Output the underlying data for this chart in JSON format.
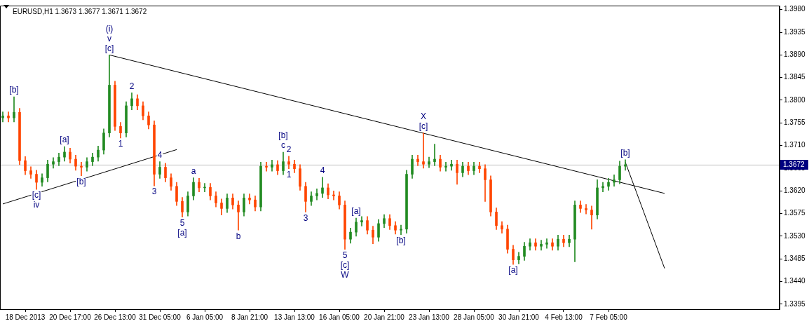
{
  "chart_data": {
    "type": "candlestick",
    "title": "EURUSD,H1 1.3673 1.3677 1.3671 1.3672",
    "categories": [
      null,
      null,
      null,
      null,
      "18 Dec 2013",
      null,
      null,
      null,
      null,
      null,
      null,
      null,
      "20 Dec 17:00",
      null,
      null,
      null,
      null,
      null,
      null,
      null,
      "26 Dec 13:00",
      null,
      null,
      null,
      null,
      null,
      null,
      null,
      "31 Dec 05:00",
      null,
      null,
      null,
      null,
      null,
      null,
      null,
      "6 Jan 05:00",
      null,
      null,
      null,
      null,
      null,
      null,
      null,
      "8 Jan 21:00",
      null,
      null,
      null,
      null,
      null,
      null,
      null,
      "13 Jan 13:00",
      null,
      null,
      null,
      null,
      null,
      null,
      null,
      "16 Jan 05:00",
      null,
      null,
      null,
      null,
      null,
      null,
      null,
      "20 Jan 21:00",
      null,
      null,
      null,
      null,
      null,
      null,
      null,
      "23 Jan 13:00",
      null,
      null,
      null,
      null,
      null,
      null,
      null,
      "28 Jan 05:00",
      null,
      null,
      null,
      null,
      null,
      null,
      null,
      "30 Jan 21:00",
      null,
      null,
      null,
      null,
      null,
      null,
      null,
      "4 Feb 13:00",
      null,
      null,
      null,
      null,
      null,
      null,
      null,
      "7 Feb 05:00",
      null,
      null,
      null,
      null,
      null,
      null,
      null,
      null,
      null,
      null,
      null,
      null,
      null,
      null,
      null,
      null,
      null,
      null,
      null,
      null,
      null,
      null,
      null,
      null,
      null,
      null,
      null,
      null,
      null,
      null
    ],
    "ohlc": [
      [
        1.3765,
        1.3777,
        1.3757,
        1.3769
      ],
      [
        1.3769,
        1.3777,
        1.3757,
        1.3765
      ],
      [
        1.3765,
        1.3807,
        1.3757,
        1.3776
      ],
      [
        1.3776,
        1.3784,
        1.3672,
        1.368
      ],
      [
        1.368,
        1.3688,
        1.3652,
        1.366
      ],
      [
        1.366,
        1.3668,
        1.3645,
        1.3653
      ],
      [
        1.3653,
        1.3661,
        1.3623,
        1.3637
      ],
      [
        1.3637,
        1.3654,
        1.3629,
        1.3646
      ],
      [
        1.3646,
        1.3681,
        1.3638,
        1.3673
      ],
      [
        1.3673,
        1.3686,
        1.3665,
        1.3678
      ],
      [
        1.3678,
        1.3695,
        1.367,
        1.3687
      ],
      [
        1.3687,
        1.3708,
        1.3679,
        1.3697
      ],
      [
        1.3697,
        1.3705,
        1.3675,
        1.3683
      ],
      [
        1.3683,
        1.3691,
        1.3661,
        1.3669
      ],
      [
        1.3669,
        1.3677,
        1.365,
        1.3667
      ],
      [
        1.3667,
        1.3686,
        1.3659,
        1.3678
      ],
      [
        1.3678,
        1.3695,
        1.367,
        1.3687
      ],
      [
        1.3687,
        1.3709,
        1.3679,
        1.3701
      ],
      [
        1.3701,
        1.3743,
        1.3693,
        1.3735
      ],
      [
        1.3735,
        1.389,
        1.3727,
        1.383
      ],
      [
        1.383,
        1.3838,
        1.374,
        1.3748
      ],
      [
        1.3748,
        1.3756,
        1.3725,
        1.3735
      ],
      [
        1.3735,
        1.3797,
        1.3727,
        1.3789
      ],
      [
        1.3789,
        1.3815,
        1.3781,
        1.3803
      ],
      [
        1.3803,
        1.3811,
        1.3781,
        1.3789
      ],
      [
        1.3789,
        1.3797,
        1.3761,
        1.3769
      ],
      [
        1.3769,
        1.3777,
        1.3743,
        1.3751
      ],
      [
        1.3751,
        1.3759,
        1.363,
        1.3653
      ],
      [
        1.3653,
        1.3678,
        1.3645,
        1.3667
      ],
      [
        1.3667,
        1.3675,
        1.3638,
        1.3646
      ],
      [
        1.3646,
        1.3654,
        1.3621,
        1.3629
      ],
      [
        1.3629,
        1.3637,
        1.3591,
        1.3599
      ],
      [
        1.3599,
        1.3607,
        1.3568,
        1.3578
      ],
      [
        1.3578,
        1.3618,
        1.357,
        1.361
      ],
      [
        1.361,
        1.3646,
        1.3602,
        1.3637
      ],
      [
        1.3637,
        1.3645,
        1.3618,
        1.3626
      ],
      [
        1.3626,
        1.3635,
        1.3618,
        1.3627
      ],
      [
        1.3627,
        1.3635,
        1.3602,
        1.361
      ],
      [
        1.361,
        1.3618,
        1.3588,
        1.3596
      ],
      [
        1.3596,
        1.3604,
        1.3572,
        1.3585
      ],
      [
        1.3585,
        1.3614,
        1.3577,
        1.3606
      ],
      [
        1.3606,
        1.3614,
        1.3584,
        1.3592
      ],
      [
        1.3592,
        1.36,
        1.3542,
        1.3578
      ],
      [
        1.3578,
        1.3614,
        1.357,
        1.3606
      ],
      [
        1.3606,
        1.3614,
        1.3594,
        1.3602
      ],
      [
        1.3602,
        1.361,
        1.358,
        1.3588
      ],
      [
        1.3588,
        1.3677,
        1.358,
        1.3669
      ],
      [
        1.3669,
        1.3677,
        1.3659,
        1.3667
      ],
      [
        1.3667,
        1.3681,
        1.3659,
        1.3672
      ],
      [
        1.3672,
        1.368,
        1.3652,
        1.366
      ],
      [
        1.366,
        1.3697,
        1.3652,
        1.3678
      ],
      [
        1.3678,
        1.3689,
        1.3664,
        1.3673
      ],
      [
        1.3673,
        1.3681,
        1.3656,
        1.3664
      ],
      [
        1.3664,
        1.3672,
        1.3621,
        1.3629
      ],
      [
        1.3629,
        1.3637,
        1.3578,
        1.3599
      ],
      [
        1.3599,
        1.3618,
        1.3591,
        1.361
      ],
      [
        1.361,
        1.3624,
        1.3602,
        1.3615
      ],
      [
        1.3615,
        1.3647,
        1.3607,
        1.3626
      ],
      [
        1.3626,
        1.3634,
        1.3604,
        1.3612
      ],
      [
        1.3612,
        1.362,
        1.3602,
        1.361
      ],
      [
        1.361,
        1.3618,
        1.3584,
        1.3592
      ],
      [
        1.3592,
        1.36,
        1.3504,
        1.3524
      ],
      [
        1.3524,
        1.3546,
        1.3516,
        1.3538
      ],
      [
        1.3538,
        1.3566,
        1.353,
        1.3558
      ],
      [
        1.3558,
        1.3569,
        1.355,
        1.3561
      ],
      [
        1.3561,
        1.3569,
        1.3534,
        1.3542
      ],
      [
        1.3542,
        1.355,
        1.3515,
        1.3528
      ],
      [
        1.3528,
        1.3563,
        1.352,
        1.3555
      ],
      [
        1.3555,
        1.3573,
        1.3547,
        1.3565
      ],
      [
        1.3565,
        1.3573,
        1.3543,
        1.3551
      ],
      [
        1.3551,
        1.3559,
        1.3534,
        1.3542
      ],
      [
        1.3542,
        1.3552,
        1.3533,
        1.3544
      ],
      [
        1.3544,
        1.3661,
        1.3536,
        1.3653
      ],
      [
        1.3653,
        1.3691,
        1.3645,
        1.3683
      ],
      [
        1.3683,
        1.3691,
        1.367,
        1.3678
      ],
      [
        1.3678,
        1.3735,
        1.3665,
        1.3673
      ],
      [
        1.3673,
        1.3687,
        1.3666,
        1.3678
      ],
      [
        1.3678,
        1.3713,
        1.367,
        1.3683
      ],
      [
        1.3683,
        1.3691,
        1.3659,
        1.3667
      ],
      [
        1.3667,
        1.3677,
        1.3659,
        1.3669
      ],
      [
        1.3669,
        1.3681,
        1.3661,
        1.3673
      ],
      [
        1.3673,
        1.3681,
        1.3633,
        1.3656
      ],
      [
        1.3656,
        1.3677,
        1.3648,
        1.3669
      ],
      [
        1.3669,
        1.3677,
        1.3652,
        1.366
      ],
      [
        1.366,
        1.3677,
        1.3652,
        1.3669
      ],
      [
        1.3669,
        1.3677,
        1.3656,
        1.3664
      ],
      [
        1.3664,
        1.3672,
        1.3599,
        1.3642
      ],
      [
        1.3642,
        1.365,
        1.357,
        1.3578
      ],
      [
        1.3578,
        1.3586,
        1.3543,
        1.3551
      ],
      [
        1.3551,
        1.3559,
        1.3536,
        1.3544
      ],
      [
        1.3544,
        1.3552,
        1.3496,
        1.3504
      ],
      [
        1.3504,
        1.3512,
        1.3474,
        1.3483
      ],
      [
        1.3483,
        1.3498,
        1.3475,
        1.349
      ],
      [
        1.349,
        1.3518,
        1.3482,
        1.351
      ],
      [
        1.351,
        1.3525,
        1.3502,
        1.3517
      ],
      [
        1.3517,
        1.3525,
        1.3502,
        1.351
      ],
      [
        1.351,
        1.3522,
        1.3502,
        1.3514
      ],
      [
        1.3514,
        1.3525,
        1.3506,
        1.3517
      ],
      [
        1.3517,
        1.3525,
        1.3502,
        1.351
      ],
      [
        1.351,
        1.3532,
        1.3502,
        1.3524
      ],
      [
        1.3524,
        1.3532,
        1.3509,
        1.3517
      ],
      [
        1.3517,
        1.3532,
        1.3509,
        1.3524
      ],
      [
        1.3524,
        1.36,
        1.3479,
        1.3592
      ],
      [
        1.3592,
        1.36,
        1.3577,
        1.3585
      ],
      [
        1.3585,
        1.3593,
        1.3574,
        1.3582
      ],
      [
        1.3582,
        1.359,
        1.3544,
        1.3572
      ],
      [
        1.3572,
        1.3642,
        1.3564,
        1.3626
      ],
      [
        1.3626,
        1.3637,
        1.3618,
        1.3629
      ],
      [
        1.3629,
        1.3645,
        1.3621,
        1.3637
      ],
      [
        1.3637,
        1.3652,
        1.3629,
        1.3642
      ],
      [
        1.3642,
        1.3679,
        1.3634,
        1.3669
      ],
      [
        1.3669,
        1.3682,
        1.3661,
        1.3672
      ],
      null,
      null,
      null,
      null,
      null,
      null,
      null,
      null,
      null,
      null,
      null,
      null,
      null,
      null,
      null,
      null,
      null,
      null,
      null,
      null,
      null,
      null,
      null,
      null,
      null,
      null,
      null
    ],
    "colors": [
      "#228b22",
      "#ff4500",
      "#228b22",
      "#ff4500",
      "#ff4500",
      "#ff4500",
      "#ff4500",
      "#228b22",
      "#228b22",
      "#228b22",
      "#228b22",
      "#228b22",
      "#ff4500",
      "#ff4500",
      "#ff4500",
      "#228b22",
      "#228b22",
      "#228b22",
      "#228b22",
      "#228b22",
      "#ff4500",
      "#ff4500",
      "#228b22",
      "#228b22",
      "#ff4500",
      "#ff4500",
      "#ff4500",
      "#ff4500",
      "#228b22",
      "#ff4500",
      "#ff4500",
      "#ff4500",
      "#ff4500",
      "#228b22",
      "#228b22",
      "#ff4500",
      "#228b22",
      "#ff4500",
      "#ff4500",
      "#ff4500",
      "#228b22",
      "#ff4500",
      "#ff4500",
      "#228b22",
      "#ff4500",
      "#ff4500",
      "#228b22",
      "#ff4500",
      "#228b22",
      "#ff4500",
      "#228b22",
      "#ff4500",
      "#ff4500",
      "#ff4500",
      "#ff4500",
      "#228b22",
      "#228b22",
      "#228b22",
      "#ff4500",
      "#ff4500",
      "#ff4500",
      "#ff4500",
      "#228b22",
      "#228b22",
      "#228b22",
      "#ff4500",
      "#ff4500",
      "#228b22",
      "#228b22",
      "#ff4500",
      "#ff4500",
      "#228b22",
      "#228b22",
      "#228b22",
      "#ff4500",
      "#ff4500",
      "#228b22",
      "#228b22",
      "#ff4500",
      "#228b22",
      "#228b22",
      "#ff4500",
      "#228b22",
      "#ff4500",
      "#228b22",
      "#ff4500",
      "#ff4500",
      "#ff4500",
      "#ff4500",
      "#ff4500",
      "#ff4500",
      "#ff4500",
      "#228b22",
      "#228b22",
      "#228b22",
      "#ff4500",
      "#228b22",
      "#228b22",
      "#ff4500",
      "#228b22",
      "#ff4500",
      "#228b22",
      "#228b22",
      "#ff4500",
      "#ff4500",
      "#ff4500",
      "#228b22",
      "#228b22",
      "#228b22",
      "#228b22",
      "#228b22",
      "#228b22",
      null,
      null,
      null,
      null,
      null,
      null,
      null,
      null,
      null,
      null,
      null,
      null,
      null,
      null,
      null,
      null,
      null,
      null,
      null,
      null,
      null,
      null,
      null,
      null,
      null,
      null,
      null
    ],
    "series": [
      {
        "type": "line",
        "color": "#000000",
        "values": [
          null,
          null,
          null,
          null,
          null,
          null,
          null,
          null,
          null,
          null,
          null,
          null,
          null,
          null,
          null,
          null,
          null,
          null,
          null,
          1.389,
          null,
          null,
          null,
          null,
          null,
          null,
          null,
          null,
          null,
          null,
          null,
          null,
          null,
          null,
          null,
          null,
          null,
          null,
          null,
          null,
          null,
          null,
          null,
          null,
          null,
          null,
          null,
          null,
          null,
          null,
          null,
          null,
          null,
          null,
          null,
          null,
          null,
          null,
          null,
          null,
          null,
          null,
          null,
          null,
          null,
          null,
          null,
          null,
          null,
          null,
          null,
          null,
          null,
          null,
          null,
          null,
          null,
          null,
          null,
          null,
          null,
          null,
          null,
          null,
          null,
          null,
          null,
          null,
          null,
          null,
          null,
          null,
          null,
          null,
          null,
          null,
          null,
          null,
          null,
          null,
          null,
          null,
          null,
          null,
          null,
          null,
          null,
          null,
          null,
          null,
          null,
          null,
          null,
          null,
          null,
          null,
          null,
          null,
          1.3615,
          null,
          null,
          null,
          null,
          null,
          null,
          null,
          null,
          null,
          null,
          null,
          null,
          null,
          null,
          null,
          null,
          null,
          null,
          null,
          null
        ]
      },
      {
        "type": "line",
        "color": "#000000",
        "values": [
          1.3594,
          null,
          null,
          null,
          null,
          null,
          null,
          null,
          null,
          null,
          null,
          null,
          null,
          null,
          null,
          null,
          null,
          null,
          null,
          null,
          null,
          null,
          null,
          null,
          null,
          null,
          null,
          null,
          null,
          null,
          null,
          1.3702,
          null,
          null,
          null,
          null,
          null,
          null,
          null,
          null,
          null,
          null,
          null,
          null,
          null,
          null,
          null,
          null,
          null,
          null,
          null,
          null,
          null,
          null,
          null,
          null,
          null,
          null,
          null,
          null,
          null,
          null,
          null,
          null,
          null,
          null,
          null,
          null,
          null,
          null,
          null,
          null,
          null,
          null,
          null,
          null,
          null,
          null,
          null,
          null,
          null,
          null,
          null,
          null,
          null,
          null,
          null,
          null,
          null,
          null,
          null,
          null,
          null,
          null,
          null,
          null,
          null,
          null,
          null,
          null,
          null,
          null,
          null,
          null,
          null,
          null,
          null,
          null,
          null,
          null,
          null,
          null,
          null,
          null,
          null,
          null,
          null,
          null,
          null,
          null,
          null,
          null,
          null,
          null,
          null,
          null,
          null,
          null,
          null,
          null,
          null,
          null,
          null,
          null,
          null,
          null,
          null,
          null,
          null
        ]
      },
      {
        "type": "line",
        "color": "#000000",
        "values": [
          null,
          null,
          null,
          null,
          null,
          null,
          null,
          null,
          null,
          null,
          null,
          null,
          null,
          null,
          null,
          null,
          null,
          null,
          null,
          null,
          null,
          null,
          null,
          null,
          null,
          null,
          null,
          null,
          null,
          null,
          null,
          null,
          null,
          null,
          null,
          null,
          null,
          null,
          null,
          null,
          null,
          null,
          null,
          null,
          null,
          null,
          null,
          null,
          null,
          null,
          null,
          null,
          null,
          null,
          null,
          null,
          null,
          null,
          null,
          null,
          null,
          null,
          null,
          null,
          null,
          null,
          null,
          null,
          null,
          null,
          null,
          null,
          null,
          null,
          null,
          null,
          null,
          null,
          null,
          null,
          null,
          null,
          null,
          null,
          null,
          null,
          null,
          null,
          null,
          null,
          null,
          null,
          null,
          null,
          null,
          null,
          null,
          null,
          null,
          null,
          null,
          null,
          null,
          null,
          null,
          null,
          null,
          null,
          null,
          null,
          null,
          1.3677,
          null,
          null,
          null,
          null,
          null,
          null,
          1.3466,
          null,
          null,
          null,
          null,
          null,
          null,
          null,
          null,
          null,
          null,
          null,
          null,
          null,
          null,
          null,
          null,
          null,
          null,
          null,
          null
        ]
      }
    ],
    "ylim": [
      1.3385,
      1.3988
    ],
    "yticks": [
      1.3395,
      {
        "value": 1.344,
        "label": "1.3440"
      },
      1.3485,
      {
        "value": 1.353,
        "label": "1.3530"
      },
      1.3575,
      {
        "value": 1.362,
        "label": "1.3620"
      },
      1.3665,
      {
        "value": 1.371,
        "label": "1.3710"
      },
      1.3755,
      {
        "value": 1.38,
        "label": "1.3800"
      },
      1.3845,
      {
        "value": 1.389,
        "label": "1.3890"
      },
      1.3935,
      {
        "value": 1.398,
        "label": "1.3980"
      }
    ],
    "ref_lines": [
      {
        "axis": "y",
        "value": 1.3672,
        "label": "1.3672",
        "color": "#c0c0c0"
      }
    ],
    "annotations": [
      {
        "text": "[c]",
        "y": 1.389
      },
      {
        "text": "v",
        "y": 1.389
      },
      {
        "text": "(i)",
        "y": 1.389
      },
      {
        "text": "[b]",
        "y": 1.3807
      },
      {
        "text": "[a]",
        "y": 1.3708
      },
      {
        "text": "[b]",
        "y": 1.365
      },
      {
        "text": "[c]",
        "y": 1.3623
      },
      {
        "text": "iv",
        "y": 1.3623
      },
      {
        "text": "2",
        "y": 1.3815
      },
      {
        "text": "1",
        "y": 1.3725
      },
      {
        "text": "4",
        "y": 1.3678
      },
      {
        "text": "3",
        "y": 1.363
      },
      {
        "text": "a",
        "y": 1.3646
      },
      {
        "text": "5",
        "y": 1.3568
      },
      {
        "text": "[a]",
        "y": 1.3568
      },
      {
        "text": "b",
        "y": 1.3542
      },
      {
        "text": "c",
        "y": 1.3697
      },
      {
        "text": "[b]",
        "y": 1.3697
      },
      {
        "text": "2",
        "y": 1.3689
      },
      {
        "text": "1",
        "y": 1.3664
      },
      {
        "text": "3",
        "y": 1.3578
      },
      {
        "text": "4",
        "y": 1.3647
      },
      {
        "text": "5",
        "y": 1.3504
      },
      {
        "text": "[c]",
        "y": 1.3504
      },
      {
        "text": "W",
        "y": 1.3504
      },
      {
        "text": "[a]",
        "y": 1.3566
      },
      {
        "text": "[b]",
        "y": 1.3533
      },
      {
        "text": "[c]",
        "y": 1.3735
      },
      {
        "text": "X",
        "y": 1.3735
      },
      {
        "text": "[a]",
        "y": 1.3474
      },
      {
        "text": "[b]",
        "y": 1.3682
      }
    ],
    "legend": false
  }
}
